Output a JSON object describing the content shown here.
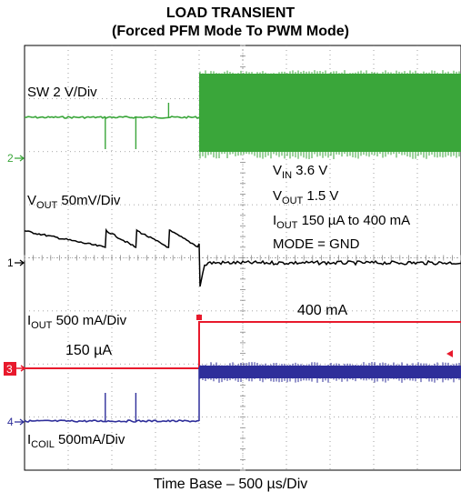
{
  "chart_data": {
    "type": "line",
    "title": "LOAD TRANSIENT",
    "subtitle": "(Forced PFM Mode To PWM Mode)",
    "xlabel": "Time Base – 500 µs/Div",
    "grid": true,
    "x_divisions": 10,
    "y_divisions": 8,
    "transition_division": 4,
    "series": [
      {
        "name": "SW",
        "label": "SW 2 V/Div",
        "color": "#3aa63a",
        "marker": "2",
        "before": "PFM switching: flat level with brief spikes",
        "after": "PWM switching: dense band",
        "spike_divisions": [
          1.85,
          2.55,
          3.3
        ]
      },
      {
        "name": "VOUT",
        "label": "V_OUT 50mV/Div",
        "color": "#000000",
        "marker": "1",
        "before": "Sawtooth ripple, 4 PFM bursts",
        "after": "Dip then recovery to steady level",
        "burst_divisions": [
          0.0,
          1.85,
          2.55,
          3.3
        ]
      },
      {
        "name": "IOUT",
        "label": "I_OUT 500 mA/Div",
        "color": "#e8192c",
        "marker": "3",
        "before_value": "150 µA",
        "after_value": "400 mA"
      },
      {
        "name": "ICOIL",
        "label": "I_COIL 500mA/Div",
        "color": "#2e2e9a",
        "marker": "4",
        "before": "Near zero with brief spikes",
        "after": "Higher level with switching ripple",
        "spike_divisions": [
          1.85,
          2.55
        ]
      }
    ]
  },
  "labels": {
    "sw": "SW 2 V/Div",
    "vout_main": "V",
    "vout_sub": "OUT",
    "vout_rest": " 50mV/Div",
    "iout_main": "I",
    "iout_sub": "OUT",
    "iout_rest": " 500 mA/Div",
    "icoil_main": "I",
    "icoil_sub": "COIL",
    "icoil_rest": " 500mA/Div",
    "iout_low": "150 µA",
    "iout_high": "400 mA",
    "vin_main": "V",
    "vin_sub": "IN",
    "vin_rest": " 3.6 V",
    "vout_c_main": "V",
    "vout_c_sub": "OUT",
    "vout_c_rest": " 1.5 V",
    "iout_c_main": "I",
    "iout_c_sub": "OUT",
    "iout_c_rest": " 150 µA to 400 mA",
    "mode": "MODE = GND"
  },
  "markers": {
    "ch1": "1",
    "ch2": "2",
    "ch3": "3",
    "ch4": "4"
  },
  "colors": {
    "sw": "#3aa63a",
    "vout": "#000000",
    "iout": "#e8192c",
    "icoil": "#2e2e9a",
    "grid": "#8a8a8a"
  }
}
